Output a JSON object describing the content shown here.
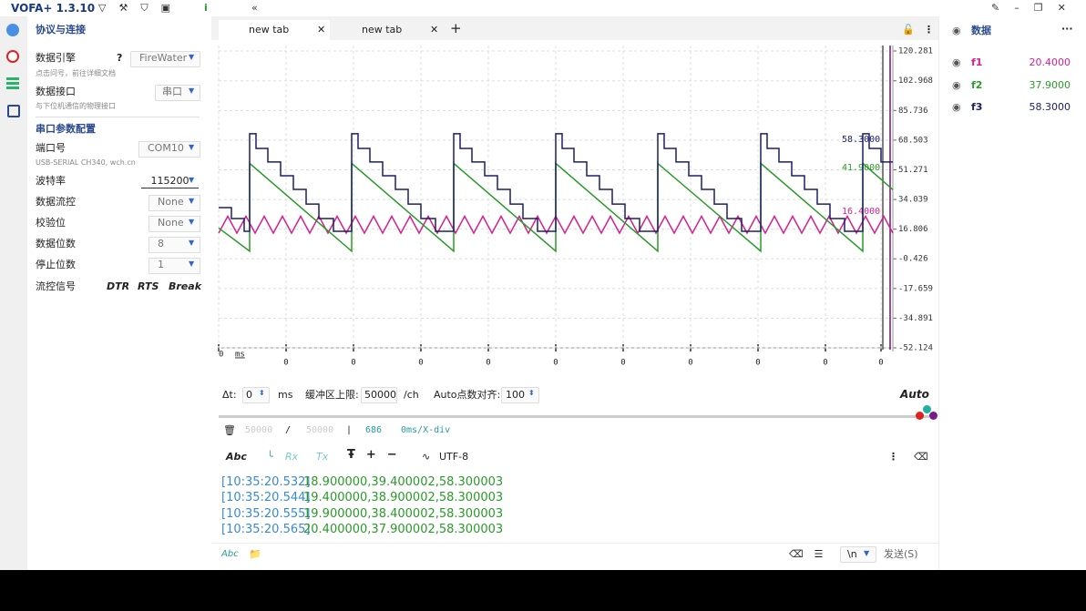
{
  "title_bar": {
    "app": "VOFA+ 1.3.10"
  },
  "left_panel": {
    "section1": "协议与连接",
    "engine": {
      "label": "数据引擎",
      "help": "?",
      "value": "FireWater",
      "hint": "点击问号，前往详细文档"
    },
    "interface": {
      "label": "数据接口",
      "value": "串口",
      "hint": "与下位机通信的物理接口"
    },
    "section2": "串口参数配置",
    "params": [
      {
        "label": "端口号",
        "value": "COM10",
        "hint": "USB-SERIAL CH340, wch.cn"
      },
      {
        "label": "波特率",
        "value": "115200"
      },
      {
        "label": "数据流控",
        "value": "None"
      },
      {
        "label": "校验位",
        "value": "None"
      },
      {
        "label": "数据位数",
        "value": "8"
      },
      {
        "label": "停止位数",
        "value": "1"
      }
    ],
    "flow": {
      "label": "流控信号",
      "options": [
        "DTR",
        "RTS",
        "Break"
      ]
    }
  },
  "tabs": [
    "new tab",
    "new tab"
  ],
  "plot": {
    "type": "line",
    "xlabel": "ms",
    "xlim": [
      0,
      740
    ],
    "ylim": [
      -52.124,
      120.281
    ],
    "xticks": [
      {
        "value": 0,
        "label": "0"
      },
      {
        "value": 74,
        "label": "0"
      },
      {
        "value": 148,
        "label": "0"
      },
      {
        "value": 222,
        "label": "0"
      },
      {
        "value": 296,
        "label": "0"
      },
      {
        "value": 370,
        "label": "0"
      },
      {
        "value": 444,
        "label": "0"
      },
      {
        "value": 518,
        "label": "0"
      },
      {
        "value": 592,
        "label": "0"
      },
      {
        "value": 666,
        "label": "0"
      },
      {
        "value": 727,
        "label": "0"
      }
    ],
    "yticks": [
      120.281,
      102.968,
      85.736,
      68.503,
      51.271,
      34.039,
      16.806,
      -0.426,
      -17.659,
      -34.891,
      -52.124
    ],
    "grid": true,
    "series": [
      {
        "name": "f1",
        "color": "#d4218e",
        "x": [
          0,
          10,
          20,
          30,
          40,
          50,
          60,
          70,
          80,
          90,
          100,
          110,
          120,
          130,
          140,
          150,
          160,
          170,
          180,
          190,
          200,
          210,
          220,
          230,
          240,
          250,
          260,
          270,
          280,
          290,
          300,
          310,
          320,
          330,
          340,
          350,
          360,
          370,
          380,
          390,
          400,
          410,
          420,
          430,
          440,
          450,
          460,
          470,
          480,
          490,
          500,
          510,
          520,
          530,
          540,
          550,
          560,
          570,
          580,
          590,
          600,
          610,
          620,
          630,
          640,
          650,
          660,
          670,
          680,
          690,
          700,
          710,
          720,
          730,
          740
        ],
        "values": [
          14.5,
          24.3,
          14.5,
          24.3,
          14.5,
          24.3,
          14.5,
          24.3,
          14.5,
          24.3,
          14.5,
          24.3,
          14.5,
          24.3,
          14.5,
          24.3,
          14.5,
          24.3,
          14.5,
          24.3,
          14.5,
          24.3,
          14.5,
          24.3,
          14.5,
          24.3,
          14.5,
          24.3,
          14.5,
          24.3,
          14.5,
          24.3,
          14.5,
          24.3,
          14.5,
          24.3,
          14.5,
          24.3,
          14.5,
          24.3,
          14.5,
          24.3,
          14.5,
          24.3,
          14.5,
          24.3,
          14.5,
          24.3,
          14.5,
          24.3,
          14.5,
          24.3,
          14.5,
          24.3,
          14.5,
          24.3,
          14.5,
          24.3,
          14.5,
          24.3,
          14.5,
          24.3,
          14.5,
          24.3,
          14.5,
          24.3,
          14.5,
          24.3,
          14.5,
          24.3,
          14.5,
          24.3,
          14.5,
          24.3,
          14.5
        ]
      },
      {
        "name": "f2",
        "color": "#2a9a2a",
        "x": [
          0,
          34,
          34,
          146,
          146,
          258,
          258,
          370,
          370,
          482,
          482,
          595,
          595,
          707,
          707,
          740
        ],
        "values": [
          17.5,
          4.0,
          55.0,
          4.0,
          55.0,
          4.0,
          55.0,
          4.0,
          55.0,
          4.0,
          55.0,
          4.0,
          55.0,
          4.0,
          55.0,
          39.7
        ]
      },
      {
        "name": "f3",
        "color": "#1b1f6b",
        "step": true,
        "x": [
          0,
          14,
          28,
          34,
          41,
          54,
          68,
          82,
          96,
          110,
          126,
          146,
          153,
          166,
          180,
          194,
          208,
          222,
          238,
          258,
          265,
          278,
          292,
          306,
          320,
          334,
          350,
          370,
          377,
          390,
          404,
          418,
          432,
          446,
          462,
          482,
          489,
          502,
          516,
          530,
          544,
          558,
          574,
          595,
          602,
          615,
          629,
          643,
          657,
          671,
          687,
          707,
          714,
          727,
          740
        ],
        "values": [
          29.3,
          23.0,
          15.6,
          72.2,
          63.7,
          55.8,
          47.8,
          39.9,
          31.4,
          23.0,
          15.6,
          72.2,
          63.7,
          55.8,
          47.8,
          39.9,
          31.4,
          23.0,
          15.6,
          72.2,
          63.7,
          55.8,
          47.8,
          39.9,
          31.4,
          23.0,
          15.6,
          72.2,
          63.7,
          55.8,
          47.8,
          39.9,
          31.4,
          23.0,
          15.6,
          72.2,
          63.7,
          55.8,
          47.8,
          39.9,
          31.4,
          23.0,
          15.6,
          72.2,
          63.7,
          55.8,
          47.8,
          39.9,
          31.4,
          23.0,
          15.6,
          72.2,
          63.7,
          55.8,
          55.8
        ]
      }
    ],
    "cursor_labels": [
      "58.3000",
      "41.9000",
      "16.4000"
    ]
  },
  "controls": {
    "dt_label": "Δt:",
    "dt_value": "0",
    "dt_unit": "ms",
    "buffer_label": "缓冲区上限:",
    "buffer_value": "50000",
    "buffer_unit": "/ch",
    "auto_label": "Auto点数对齐:",
    "auto_value": "100",
    "auto": "Auto"
  },
  "status": {
    "count1": "50000",
    "sep": "/",
    "count2": "50000",
    "bar": "|",
    "points": "686",
    "div": "0ms/X-div"
  },
  "toolbar": {
    "abc": "Abc",
    "rx": "Rx",
    "tx": "Tx",
    "encoding": "UTF-8"
  },
  "log": [
    {
      "time": "[10:35:20.532]",
      "data": "18.900000,39.400002,58.300003"
    },
    {
      "time": "[10:35:20.544]",
      "data": "19.400000,38.900002,58.300003"
    },
    {
      "time": "[10:35:20.555]",
      "data": "19.900000,38.400002,58.300003"
    },
    {
      "time": "[10:35:20.565]",
      "data": "20.400000,37.900002,58.300003"
    }
  ],
  "send_bar": {
    "abc": "Abc",
    "newline": "\\n",
    "send": "发送(S)"
  },
  "right_panel": {
    "title": "数据",
    "channels": [
      {
        "name": "f1",
        "value": "20.4000"
      },
      {
        "name": "f2",
        "value": "37.9000"
      },
      {
        "name": "f3",
        "value": "58.3000"
      }
    ]
  }
}
